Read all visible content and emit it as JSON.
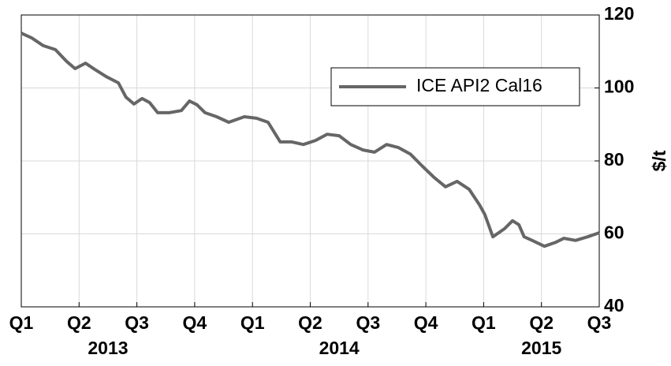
{
  "chart_data": {
    "type": "line",
    "ylabel": "$/t",
    "xlim": [
      0,
      10
    ],
    "xticks": [
      {
        "value": 0,
        "label": "Q1",
        "group": "2013"
      },
      {
        "value": 1,
        "label": "Q2",
        "group": "2013"
      },
      {
        "value": 2,
        "label": "Q3",
        "group": "2013"
      },
      {
        "value": 3,
        "label": "Q4",
        "group": "2013"
      },
      {
        "value": 4,
        "label": "Q1",
        "group": "2014"
      },
      {
        "value": 5,
        "label": "Q2",
        "group": "2014"
      },
      {
        "value": 6,
        "label": "Q3",
        "group": "2014"
      },
      {
        "value": 7,
        "label": "Q4",
        "group": "2014"
      },
      {
        "value": 8,
        "label": "Q1",
        "group": "2015"
      },
      {
        "value": 9,
        "label": "Q2",
        "group": "2015"
      },
      {
        "value": 10,
        "label": "Q3",
        "group": "2015"
      }
    ],
    "ylim": [
      40,
      120
    ],
    "yticks": [
      40,
      60,
      80,
      100,
      120
    ],
    "grid": true,
    "legend": "upper right",
    "x": [
      0,
      0.18,
      0.38,
      0.59,
      0.79,
      0.93,
      1.11,
      1.27,
      1.47,
      1.68,
      1.81,
      1.95,
      2.09,
      2.22,
      2.36,
      2.56,
      2.77,
      2.91,
      3.04,
      3.18,
      3.38,
      3.59,
      3.86,
      4.07,
      4.27,
      4.48,
      4.68,
      4.88,
      5.09,
      5.29,
      5.5,
      5.7,
      5.91,
      6.11,
      6.32,
      6.52,
      6.73,
      6.93,
      7.14,
      7.34,
      7.54,
      7.75,
      7.93,
      8.02,
      8.16,
      8.36,
      8.5,
      8.61,
      8.7,
      8.84,
      9.05,
      9.25,
      9.39,
      9.59,
      9.8,
      10
    ],
    "series": [
      {
        "name": "ICE API2 Cal16",
        "color": "#666666",
        "values": [
          115,
          113.7,
          111.6,
          110.5,
          107.2,
          105.3,
          106.8,
          105.1,
          103.1,
          101.4,
          97.5,
          95.6,
          97.1,
          96,
          93.2,
          93.2,
          93.8,
          96.4,
          95.4,
          93.2,
          92.1,
          90.6,
          92.1,
          91.7,
          90.6,
          85.2,
          85.2,
          84.5,
          85.6,
          87.3,
          86.9,
          84.5,
          83,
          82.4,
          84.5,
          83.7,
          81.9,
          78.7,
          75.5,
          72.9,
          74.4,
          72.2,
          67.9,
          65.3,
          59.2,
          61.4,
          63.6,
          62.5,
          59.2,
          58.2,
          56.6,
          57.7,
          58.8,
          58.2,
          59.2,
          60.3
        ]
      }
    ]
  }
}
